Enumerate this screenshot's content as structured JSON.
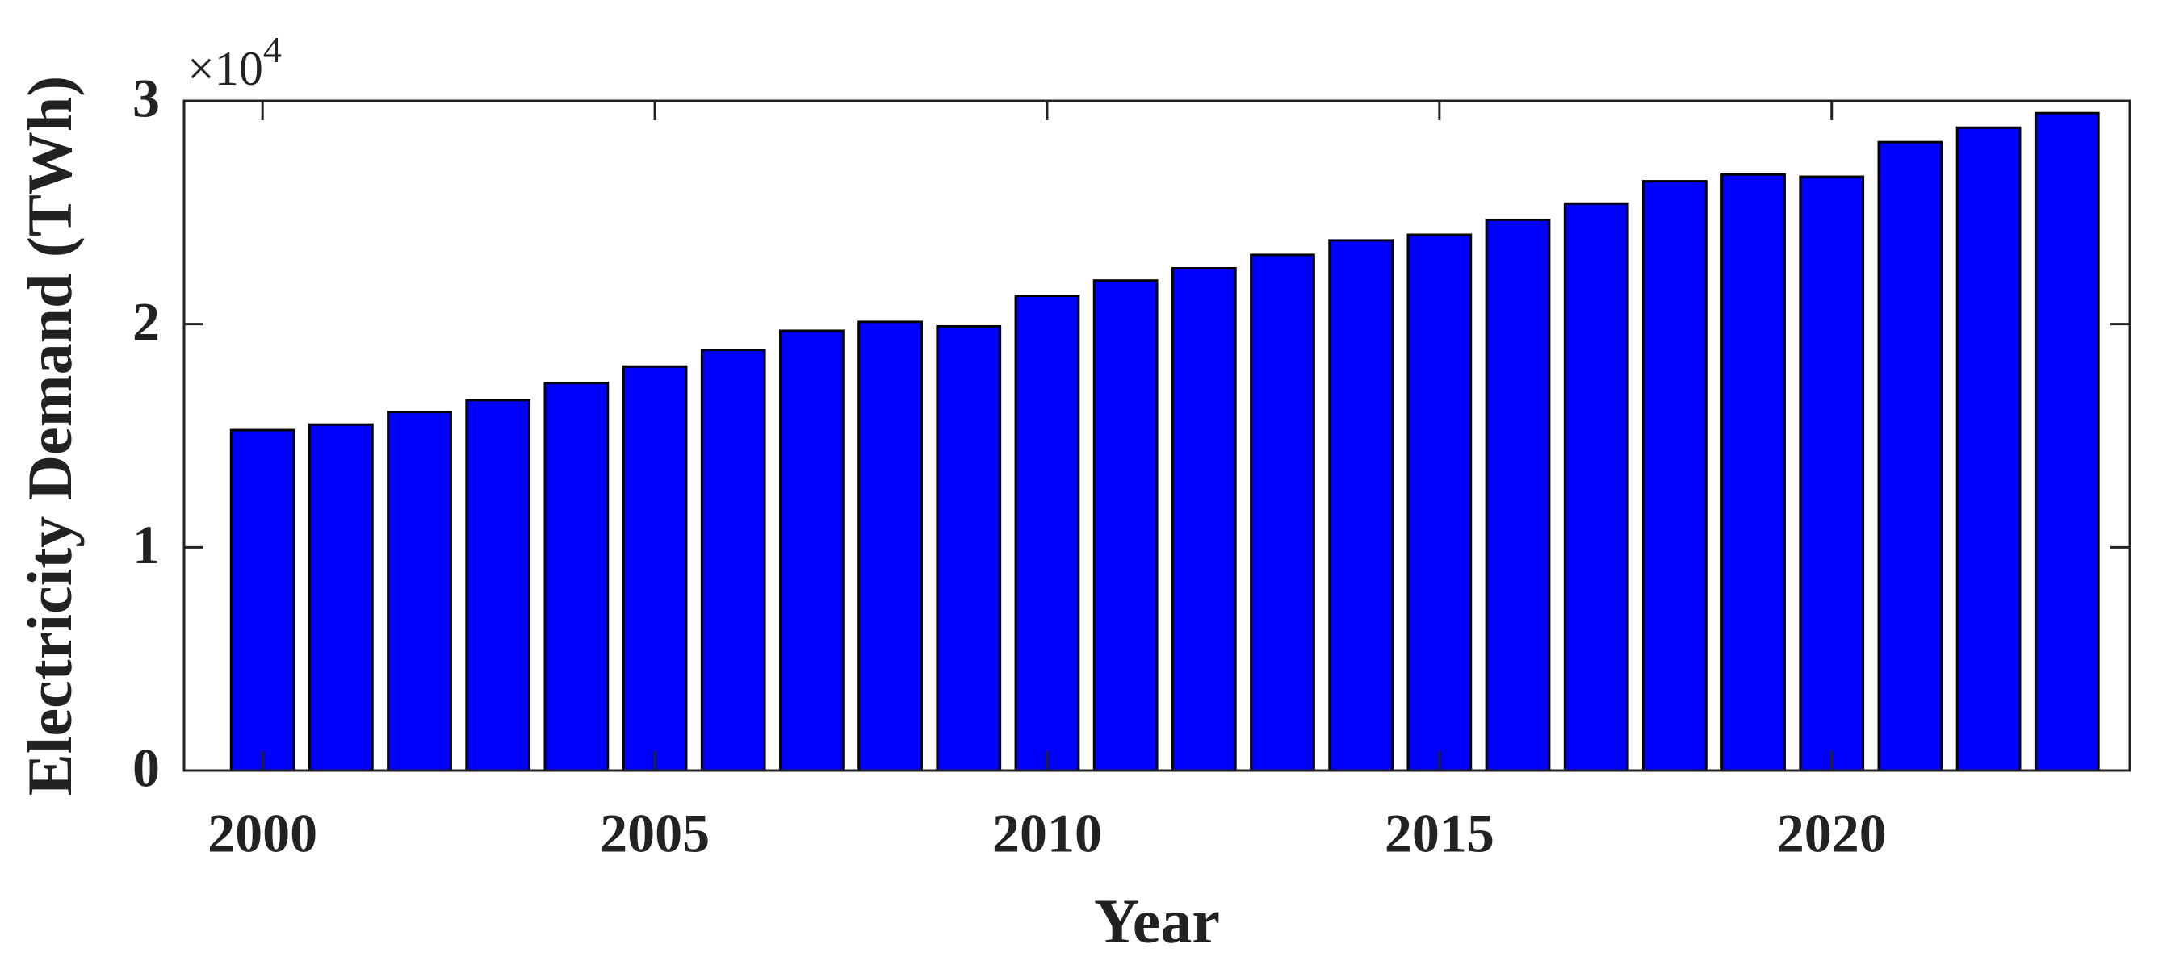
{
  "chart_data": {
    "type": "bar",
    "x_label": "Year",
    "y_label": "Electricity Demand (TWh)",
    "y_multiplier": "×10",
    "y_multiplier_exponent": "4",
    "x": [
      2000,
      2001,
      2002,
      2003,
      2004,
      2005,
      2006,
      2007,
      2008,
      2009,
      2010,
      2011,
      2012,
      2013,
      2014,
      2015,
      2016,
      2017,
      2018,
      2019,
      2020,
      2021,
      2022,
      2023
    ],
    "values": [
      1.525,
      1.55,
      1.606,
      1.66,
      1.736,
      1.81,
      1.885,
      1.97,
      2.01,
      1.99,
      2.127,
      2.195,
      2.25,
      2.31,
      2.375,
      2.4,
      2.467,
      2.54,
      2.64,
      2.67,
      2.66,
      2.815,
      2.88,
      2.945
    ],
    "color": "#0000ff",
    "xlim": [
      1999,
      2023.8
    ],
    "xticks": [
      2000,
      2005,
      2010,
      2015,
      2020
    ],
    "ylim": [
      0,
      3
    ],
    "yticks": [
      0,
      1,
      2,
      3
    ],
    "grid": false
  }
}
